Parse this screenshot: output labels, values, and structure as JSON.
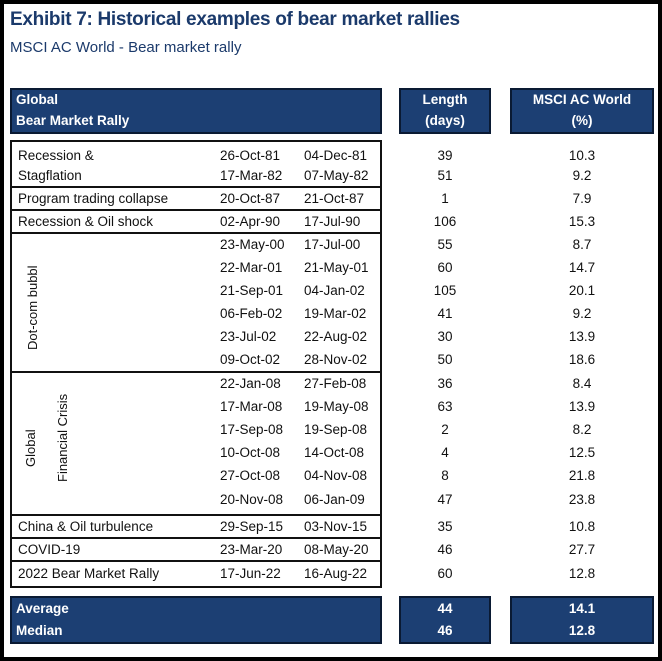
{
  "title": "Exhibit 7: Historical examples of bear market rallies",
  "subtitle": "MSCI AC World - Bear market rally",
  "headers": {
    "col1_line1": "Global",
    "col1_line2": "Bear Market Rally",
    "length_line1": "Length",
    "length_line2": "(days)",
    "msci_line1": "MSCI AC World",
    "msci_line2": "(%)"
  },
  "groups": {
    "recession_line1": "Recession &",
    "recession_line2": "Stagflation",
    "program": "Program trading collapse",
    "oil_shock": "Recession & Oil shock",
    "dotcom": "Dot-com bubbl",
    "gfc_line1": "Global",
    "gfc_line2": "Financial Crisis",
    "china": "China & Oil turbulence",
    "covid": "COVID-19",
    "rally2022": "2022 Bear Market Rally"
  },
  "rows": [
    {
      "start": "26-Oct-81",
      "end": "04-Dec-81",
      "length": "39",
      "msci": "10.3"
    },
    {
      "start": "17-Mar-82",
      "end": "07-May-82",
      "length": "51",
      "msci": "9.2"
    },
    {
      "start": "20-Oct-87",
      "end": "21-Oct-87",
      "length": "1",
      "msci": "7.9"
    },
    {
      "start": "02-Apr-90",
      "end": "17-Jul-90",
      "length": "106",
      "msci": "15.3"
    },
    {
      "start": "23-May-00",
      "end": "17-Jul-00",
      "length": "55",
      "msci": "8.7"
    },
    {
      "start": "22-Mar-01",
      "end": "21-May-01",
      "length": "60",
      "msci": "14.7"
    },
    {
      "start": "21-Sep-01",
      "end": "04-Jan-02",
      "length": "105",
      "msci": "20.1"
    },
    {
      "start": "06-Feb-02",
      "end": "19-Mar-02",
      "length": "41",
      "msci": "9.2"
    },
    {
      "start": "23-Jul-02",
      "end": "22-Aug-02",
      "length": "30",
      "msci": "13.9"
    },
    {
      "start": "09-Oct-02",
      "end": "28-Nov-02",
      "length": "50",
      "msci": "18.6"
    },
    {
      "start": "22-Jan-08",
      "end": "27-Feb-08",
      "length": "36",
      "msci": "8.4"
    },
    {
      "start": "17-Mar-08",
      "end": "19-May-08",
      "length": "63",
      "msci": "13.9"
    },
    {
      "start": "17-Sep-08",
      "end": "19-Sep-08",
      "length": "2",
      "msci": "8.2"
    },
    {
      "start": "10-Oct-08",
      "end": "14-Oct-08",
      "length": "4",
      "msci": "12.5"
    },
    {
      "start": "27-Oct-08",
      "end": "04-Nov-08",
      "length": "8",
      "msci": "21.8"
    },
    {
      "start": "20-Nov-08",
      "end": "06-Jan-09",
      "length": "47",
      "msci": "23.8"
    },
    {
      "start": "29-Sep-15",
      "end": "03-Nov-15",
      "length": "35",
      "msci": "10.8"
    },
    {
      "start": "23-Mar-20",
      "end": "08-May-20",
      "length": "46",
      "msci": "27.7"
    },
    {
      "start": "17-Jun-22",
      "end": "16-Aug-22",
      "length": "60",
      "msci": "12.8"
    }
  ],
  "summary": {
    "average_label": "Average",
    "median_label": "Median",
    "average_length": "44",
    "median_length": "46",
    "average_msci": "14.1",
    "median_msci": "12.8"
  }
}
